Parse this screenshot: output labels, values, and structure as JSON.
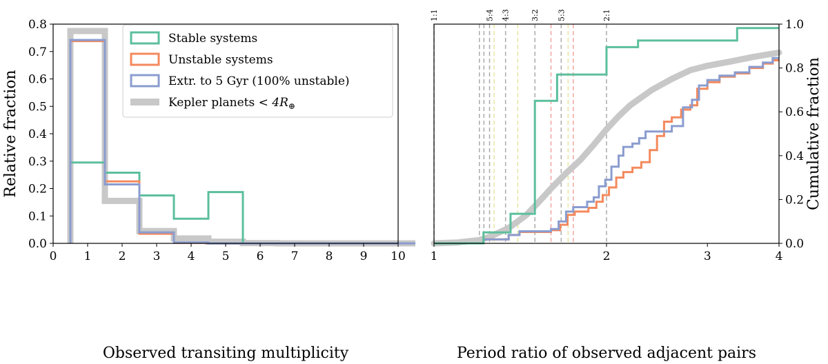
{
  "colors": {
    "stable": "#5bbf9c",
    "unstable": "#f4895d",
    "extr": "#8a9ccf",
    "kepler": "#c8c8c8",
    "res_gray": "#aaaaaa",
    "res_yellow": "#e6e6a0",
    "res_red": "#f2a3a3"
  },
  "chart_data": [
    {
      "type": "histogram-step",
      "panel": "left",
      "xlabel": "Observed transiting multiplicity",
      "ylabel": "Relative fraction",
      "xlim": [
        0,
        10
      ],
      "ylim": [
        0,
        0.8
      ],
      "xticks": [
        0,
        1,
        2,
        3,
        4,
        5,
        6,
        7,
        8,
        9,
        10
      ],
      "xtick_labels": [
        "0",
        "1",
        "2",
        "3",
        "4",
        "5",
        "6",
        "7",
        "8",
        "9",
        "10"
      ],
      "yticks": [
        0.0,
        0.1,
        0.2,
        0.3,
        0.4,
        0.5,
        0.6,
        0.7,
        0.8
      ],
      "ytick_labels": [
        "0.0",
        "0.1",
        "0.2",
        "0.3",
        "0.4",
        "0.5",
        "0.6",
        "0.7",
        "0.8"
      ],
      "bin_edges": [
        0.5,
        1.5,
        2.5,
        3.5,
        4.5,
        5.5,
        6.5,
        7.5,
        8.5,
        9.5,
        10.5
      ],
      "series": [
        {
          "key": "kepler",
          "name": "Kepler planets $<4R_\\oplus$",
          "values": [
            0.775,
            0.155,
            0.045,
            0.018,
            0.006,
            0.001,
            0.0,
            0.0,
            0.0,
            0.0
          ],
          "width": 9
        },
        {
          "key": "stable",
          "name": "Stable systems",
          "values": [
            0.295,
            0.258,
            0.175,
            0.09,
            0.187,
            0.0,
            0.0,
            0.0,
            0.0,
            0.0
          ],
          "width": 3
        },
        {
          "key": "unstable",
          "name": "Unstable systems",
          "values": [
            0.738,
            0.226,
            0.035,
            0.002,
            0.0,
            0.0,
            0.0,
            0.0,
            0.0,
            0.0
          ],
          "width": 3
        },
        {
          "key": "extr",
          "name": "Extr. to 5 Gyr (100% unstable)",
          "values": [
            0.742,
            0.215,
            0.04,
            0.003,
            0.0,
            0.0,
            0.0,
            0.0,
            0.0,
            0.0
          ],
          "width": 3
        }
      ],
      "legend": {
        "position": "top-right",
        "entries": [
          {
            "key": "stable",
            "label": "Stable systems"
          },
          {
            "key": "unstable",
            "label": "Unstable systems"
          },
          {
            "key": "extr",
            "label": "Extr. to 5 Gyr (100% unstable)"
          },
          {
            "key": "kepler",
            "label_main": "Kepler planets ",
            "label_math": "< 4R",
            "label_sub": "⊕"
          }
        ]
      }
    },
    {
      "type": "cdf-step",
      "panel": "right",
      "xscale": "log",
      "xlabel": "Period ratio of observed adjacent pairs",
      "ylabel": "Cumulative fraction",
      "xlim": [
        1,
        4
      ],
      "ylim": [
        0,
        1
      ],
      "xticks": [
        1,
        2,
        3,
        4
      ],
      "xtick_labels": [
        "1",
        "2",
        "3",
        "4"
      ],
      "yticks": [
        0.0,
        0.2,
        0.4,
        0.6,
        0.8,
        1.0
      ],
      "ytick_labels": [
        "0.0",
        "0.2",
        "0.4",
        "0.6",
        "0.8",
        "1.0"
      ],
      "resonances": [
        {
          "x": 1.0,
          "label": "1:1",
          "color": "gray"
        },
        {
          "x": 1.2,
          "label": "",
          "color": "gray"
        },
        {
          "x": 1.222,
          "label": "",
          "color": "gray"
        },
        {
          "x": 1.25,
          "label": "5:4",
          "color": "gray"
        },
        {
          "x": 1.273,
          "label": "",
          "color": "yellow"
        },
        {
          "x": 1.333,
          "label": "4:3",
          "color": "gray"
        },
        {
          "x": 1.4,
          "label": "",
          "color": "yellow"
        },
        {
          "x": 1.5,
          "label": "3:2",
          "color": "gray"
        },
        {
          "x": 1.6,
          "label": "",
          "color": "red"
        },
        {
          "x": 1.667,
          "label": "5:3",
          "color": "gray"
        },
        {
          "x": 1.714,
          "label": "",
          "color": "yellow"
        },
        {
          "x": 1.75,
          "label": "",
          "color": "red"
        },
        {
          "x": 2.0,
          "label": "2:1",
          "color": "gray"
        }
      ],
      "stable_steps": [
        [
          1.0,
          0.0
        ],
        [
          1.22,
          0.0
        ],
        [
          1.22,
          0.05
        ],
        [
          1.36,
          0.05
        ],
        [
          1.36,
          0.135
        ],
        [
          1.5,
          0.135
        ],
        [
          1.5,
          0.65
        ],
        [
          1.64,
          0.65
        ],
        [
          1.64,
          0.77
        ],
        [
          2.0,
          0.77
        ],
        [
          2.0,
          0.895
        ],
        [
          2.27,
          0.895
        ],
        [
          2.27,
          0.925
        ],
        [
          3.38,
          0.925
        ],
        [
          3.38,
          0.982
        ],
        [
          4.0,
          0.982
        ]
      ],
      "unstable_steps": [
        [
          1.0,
          0.0
        ],
        [
          1.22,
          0.0
        ],
        [
          1.22,
          0.018
        ],
        [
          1.35,
          0.018
        ],
        [
          1.35,
          0.038
        ],
        [
          1.41,
          0.038
        ],
        [
          1.41,
          0.052
        ],
        [
          1.6,
          0.052
        ],
        [
          1.6,
          0.06
        ],
        [
          1.66,
          0.06
        ],
        [
          1.66,
          0.085
        ],
        [
          1.71,
          0.085
        ],
        [
          1.71,
          0.13
        ],
        [
          1.76,
          0.13
        ],
        [
          1.76,
          0.145
        ],
        [
          1.86,
          0.145
        ],
        [
          1.86,
          0.162
        ],
        [
          1.92,
          0.162
        ],
        [
          1.92,
          0.19
        ],
        [
          1.97,
          0.19
        ],
        [
          1.97,
          0.22
        ],
        [
          2.02,
          0.22
        ],
        [
          2.02,
          0.255
        ],
        [
          2.08,
          0.255
        ],
        [
          2.08,
          0.3
        ],
        [
          2.14,
          0.3
        ],
        [
          2.14,
          0.325
        ],
        [
          2.22,
          0.325
        ],
        [
          2.22,
          0.345
        ],
        [
          2.3,
          0.345
        ],
        [
          2.3,
          0.37
        ],
        [
          2.38,
          0.37
        ],
        [
          2.38,
          0.425
        ],
        [
          2.45,
          0.425
        ],
        [
          2.45,
          0.49
        ],
        [
          2.52,
          0.49
        ],
        [
          2.52,
          0.555
        ],
        [
          2.6,
          0.555
        ],
        [
          2.6,
          0.575
        ],
        [
          2.7,
          0.575
        ],
        [
          2.7,
          0.61
        ],
        [
          2.8,
          0.61
        ],
        [
          2.8,
          0.63
        ],
        [
          2.88,
          0.63
        ],
        [
          2.88,
          0.705
        ],
        [
          3.0,
          0.705
        ],
        [
          3.0,
          0.735
        ],
        [
          3.15,
          0.735
        ],
        [
          3.15,
          0.76
        ],
        [
          3.35,
          0.76
        ],
        [
          3.35,
          0.775
        ],
        [
          3.55,
          0.775
        ],
        [
          3.55,
          0.8
        ],
        [
          3.75,
          0.8
        ],
        [
          3.75,
          0.82
        ],
        [
          3.9,
          0.82
        ],
        [
          3.9,
          0.835
        ],
        [
          4.0,
          0.835
        ]
      ],
      "extr_steps": [
        [
          1.0,
          0.0
        ],
        [
          1.22,
          0.0
        ],
        [
          1.22,
          0.018
        ],
        [
          1.35,
          0.018
        ],
        [
          1.35,
          0.038
        ],
        [
          1.41,
          0.038
        ],
        [
          1.41,
          0.055
        ],
        [
          1.6,
          0.055
        ],
        [
          1.6,
          0.065
        ],
        [
          1.65,
          0.065
        ],
        [
          1.65,
          0.1
        ],
        [
          1.7,
          0.1
        ],
        [
          1.7,
          0.145
        ],
        [
          1.75,
          0.145
        ],
        [
          1.75,
          0.165
        ],
        [
          1.85,
          0.165
        ],
        [
          1.85,
          0.19
        ],
        [
          1.9,
          0.19
        ],
        [
          1.9,
          0.21
        ],
        [
          1.94,
          0.21
        ],
        [
          1.94,
          0.26
        ],
        [
          1.99,
          0.26
        ],
        [
          1.99,
          0.29
        ],
        [
          2.04,
          0.29
        ],
        [
          2.04,
          0.35
        ],
        [
          2.1,
          0.35
        ],
        [
          2.1,
          0.4
        ],
        [
          2.14,
          0.4
        ],
        [
          2.14,
          0.44
        ],
        [
          2.22,
          0.44
        ],
        [
          2.22,
          0.455
        ],
        [
          2.28,
          0.455
        ],
        [
          2.28,
          0.48
        ],
        [
          2.34,
          0.48
        ],
        [
          2.34,
          0.51
        ],
        [
          2.6,
          0.51
        ],
        [
          2.6,
          0.535
        ],
        [
          2.72,
          0.535
        ],
        [
          2.72,
          0.62
        ],
        [
          2.82,
          0.62
        ],
        [
          2.82,
          0.655
        ],
        [
          2.9,
          0.655
        ],
        [
          2.9,
          0.72
        ],
        [
          3.0,
          0.72
        ],
        [
          3.0,
          0.745
        ],
        [
          3.15,
          0.745
        ],
        [
          3.15,
          0.765
        ],
        [
          3.35,
          0.765
        ],
        [
          3.35,
          0.78
        ],
        [
          3.55,
          0.78
        ],
        [
          3.55,
          0.805
        ],
        [
          3.75,
          0.805
        ],
        [
          3.75,
          0.825
        ],
        [
          3.9,
          0.825
        ],
        [
          3.9,
          0.845
        ],
        [
          4.0,
          0.845
        ]
      ],
      "kepler_curve": [
        [
          1.0,
          0.0
        ],
        [
          1.1,
          0.004
        ],
        [
          1.2,
          0.015
        ],
        [
          1.25,
          0.03
        ],
        [
          1.3,
          0.05
        ],
        [
          1.35,
          0.07
        ],
        [
          1.4,
          0.1
        ],
        [
          1.45,
          0.13
        ],
        [
          1.5,
          0.17
        ],
        [
          1.55,
          0.21
        ],
        [
          1.6,
          0.25
        ],
        [
          1.7,
          0.32
        ],
        [
          1.8,
          0.38
        ],
        [
          1.9,
          0.45
        ],
        [
          2.0,
          0.52
        ],
        [
          2.1,
          0.58
        ],
        [
          2.2,
          0.63
        ],
        [
          2.4,
          0.7
        ],
        [
          2.6,
          0.75
        ],
        [
          2.8,
          0.79
        ],
        [
          3.0,
          0.81
        ],
        [
          3.3,
          0.83
        ],
        [
          3.6,
          0.85
        ],
        [
          4.0,
          0.87
        ]
      ]
    }
  ]
}
